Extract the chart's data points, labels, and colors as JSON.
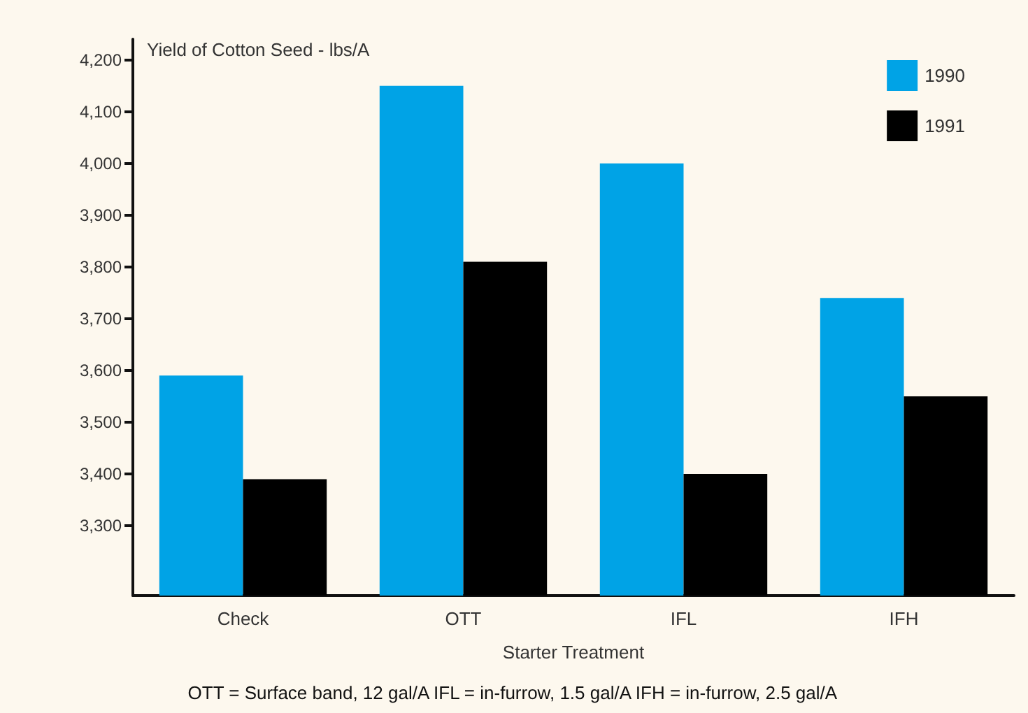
{
  "chart_data": {
    "type": "bar",
    "title": "Yield of Cotton Seed - lbs/A",
    "xlabel": "Starter Treatment",
    "categories": [
      "Check",
      "OTT",
      "IFL",
      "IFH"
    ],
    "series": [
      {
        "name": "1990",
        "color": "#00a3e6",
        "values": [
          3590,
          4150,
          4000,
          3740
        ]
      },
      {
        "name": "1991",
        "color": "#000000",
        "values": [
          3390,
          3810,
          3400,
          3550
        ]
      }
    ],
    "ylim": [
      3165,
      4240
    ],
    "yticks": [
      {
        "value": 3300,
        "label": "3,300"
      },
      {
        "value": 3400,
        "label": "3,400"
      },
      {
        "value": 3500,
        "label": "3,500"
      },
      {
        "value": 3600,
        "label": "3,600"
      },
      {
        "value": 3700,
        "label": "3,700"
      },
      {
        "value": 3800,
        "label": "3,800"
      },
      {
        "value": 3900,
        "label": "3,900"
      },
      {
        "value": 4000,
        "label": "4,000"
      },
      {
        "value": 4100,
        "label": "4,100"
      },
      {
        "value": 4200,
        "label": "4,200"
      }
    ],
    "grid": false,
    "legend": "top right",
    "annotations": [
      "OTT = Surface band, 12 gal/A IFL = in-furrow, 1.5 gal/A IFH = in-furrow, 2.5 gal/A"
    ]
  }
}
